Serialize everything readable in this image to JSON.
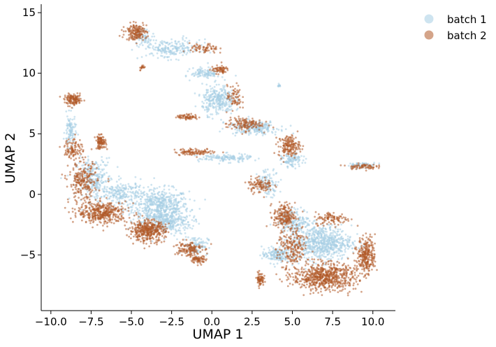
{
  "chart_data": {
    "type": "scatter",
    "title": "",
    "xlabel": "UMAP 1",
    "ylabel": "UMAP 2",
    "xlim": [
      -10.6,
      11.4
    ],
    "ylim": [
      -9.6,
      15.7
    ],
    "xticks": [
      -10.0,
      -7.5,
      -5.0,
      -2.5,
      0.0,
      2.5,
      5.0,
      7.5,
      10.0
    ],
    "xtick_labels": [
      "−10.0",
      "−7.5",
      "−5.0",
      "−2.5",
      "0.0",
      "2.5",
      "5.0",
      "7.5",
      "10.0"
    ],
    "yticks": [
      -5,
      0,
      5,
      10,
      15
    ],
    "ytick_labels": [
      "−5",
      "0",
      "5",
      "10",
      "15"
    ],
    "grid": false,
    "legend_position": "outside-top-right",
    "series": [
      {
        "name": "batch 1",
        "color": "#a6cee3",
        "clusters": [
          {
            "center": [
              -3.2,
              -1.0
            ],
            "spread": [
              1.6,
              1.3
            ],
            "weight": 16
          },
          {
            "center": [
              -2.8,
              -2.3
            ],
            "spread": [
              1.4,
              0.9
            ],
            "weight": 8
          },
          {
            "center": [
              -7.3,
              1.2
            ],
            "spread": [
              1.0,
              1.6
            ],
            "weight": 8
          },
          {
            "center": [
              -5.5,
              0.0
            ],
            "spread": [
              1.2,
              1.0
            ],
            "weight": 6
          },
          {
            "center": [
              -8.8,
              5.2
            ],
            "spread": [
              0.3,
              1.2
            ],
            "weight": 3
          },
          {
            "center": [
              -1.0,
              -4.2
            ],
            "spread": [
              0.7,
              0.7
            ],
            "weight": 3
          },
          {
            "center": [
              6.8,
              -4.0
            ],
            "spread": [
              1.7,
              1.3
            ],
            "weight": 20
          },
          {
            "center": [
              4.0,
              -5.0
            ],
            "spread": [
              0.8,
              0.6
            ],
            "weight": 5
          },
          {
            "center": [
              5.2,
              -2.2
            ],
            "spread": [
              0.9,
              0.9
            ],
            "weight": 5
          },
          {
            "center": [
              0.4,
              7.8
            ],
            "spread": [
              0.9,
              1.1
            ],
            "weight": 9
          },
          {
            "center": [
              2.6,
              5.5
            ],
            "spread": [
              1.4,
              0.5
            ],
            "weight": 7
          },
          {
            "center": [
              -2.5,
              12.0
            ],
            "spread": [
              1.6,
              0.7
            ],
            "weight": 6
          },
          {
            "center": [
              -0.4,
              10.0
            ],
            "spread": [
              0.8,
              0.4
            ],
            "weight": 3
          },
          {
            "center": [
              0.8,
              3.0
            ],
            "spread": [
              1.5,
              0.3
            ],
            "weight": 4
          },
          {
            "center": [
              5.0,
              2.8
            ],
            "spread": [
              0.6,
              0.5
            ],
            "weight": 3
          },
          {
            "center": [
              3.5,
              1.0
            ],
            "spread": [
              0.6,
              1.0
            ],
            "weight": 3
          },
          {
            "center": [
              9.3,
              2.4
            ],
            "spread": [
              0.8,
              0.2
            ],
            "weight": 2
          },
          {
            "center": [
              -4.2,
              13.0
            ],
            "spread": [
              0.6,
              0.6
            ],
            "weight": 2
          },
          {
            "center": [
              4.2,
              9.0
            ],
            "spread": [
              0.1,
              0.1
            ],
            "weight": 0.3
          }
        ]
      },
      {
        "name": "batch 2",
        "color": "#b15928",
        "clusters": [
          {
            "center": [
              -4.0,
              -3.0
            ],
            "spread": [
              1.0,
              0.8
            ],
            "weight": 12
          },
          {
            "center": [
              -6.8,
              -1.5
            ],
            "spread": [
              1.4,
              0.8
            ],
            "weight": 12
          },
          {
            "center": [
              -8.0,
              1.0
            ],
            "spread": [
              0.8,
              1.5
            ],
            "weight": 7
          },
          {
            "center": [
              -6.9,
              4.3
            ],
            "spread": [
              0.3,
              0.5
            ],
            "weight": 3
          },
          {
            "center": [
              -8.6,
              3.8
            ],
            "spread": [
              0.5,
              0.8
            ],
            "weight": 3
          },
          {
            "center": [
              -8.6,
              7.8
            ],
            "spread": [
              0.5,
              0.4
            ],
            "weight": 4
          },
          {
            "center": [
              -4.7,
              13.4
            ],
            "spread": [
              0.6,
              0.6
            ],
            "weight": 5
          },
          {
            "center": [
              -1.5,
              -4.5
            ],
            "spread": [
              0.8,
              0.6
            ],
            "weight": 4
          },
          {
            "center": [
              -0.8,
              -5.4
            ],
            "spread": [
              0.4,
              0.3
            ],
            "weight": 2
          },
          {
            "center": [
              7.0,
              -6.8
            ],
            "spread": [
              1.8,
              1.0
            ],
            "weight": 20
          },
          {
            "center": [
              9.6,
              -5.0
            ],
            "spread": [
              0.5,
              1.3
            ],
            "weight": 8
          },
          {
            "center": [
              5.0,
              -4.5
            ],
            "spread": [
              0.8,
              1.5
            ],
            "weight": 6
          },
          {
            "center": [
              4.5,
              -1.8
            ],
            "spread": [
              0.6,
              1.0
            ],
            "weight": 6
          },
          {
            "center": [
              7.5,
              -2.0
            ],
            "spread": [
              1.0,
              0.5
            ],
            "weight": 3
          },
          {
            "center": [
              3.0,
              -7.0
            ],
            "spread": [
              0.2,
              0.5
            ],
            "weight": 2
          },
          {
            "center": [
              4.8,
              4.0
            ],
            "spread": [
              0.6,
              0.8
            ],
            "weight": 5
          },
          {
            "center": [
              2.0,
              5.8
            ],
            "spread": [
              1.0,
              0.5
            ],
            "weight": 4
          },
          {
            "center": [
              0.5,
              10.3
            ],
            "spread": [
              0.5,
              0.3
            ],
            "weight": 2
          },
          {
            "center": [
              1.4,
              8.0
            ],
            "spread": [
              0.4,
              0.9
            ],
            "weight": 2
          },
          {
            "center": [
              -1.5,
              6.4
            ],
            "spread": [
              0.6,
              0.2
            ],
            "weight": 2
          },
          {
            "center": [
              -1.0,
              3.5
            ],
            "spread": [
              1.2,
              0.25
            ],
            "weight": 3
          },
          {
            "center": [
              9.3,
              2.3
            ],
            "spread": [
              0.8,
              0.2
            ],
            "weight": 2
          },
          {
            "center": [
              3.0,
              0.8
            ],
            "spread": [
              0.7,
              0.6
            ],
            "weight": 3
          },
          {
            "center": [
              -0.5,
              12.0
            ],
            "spread": [
              0.8,
              0.4
            ],
            "weight": 2
          },
          {
            "center": [
              -4.3,
              10.5
            ],
            "spread": [
              0.2,
              0.2
            ],
            "weight": 0.5
          }
        ]
      }
    ]
  }
}
